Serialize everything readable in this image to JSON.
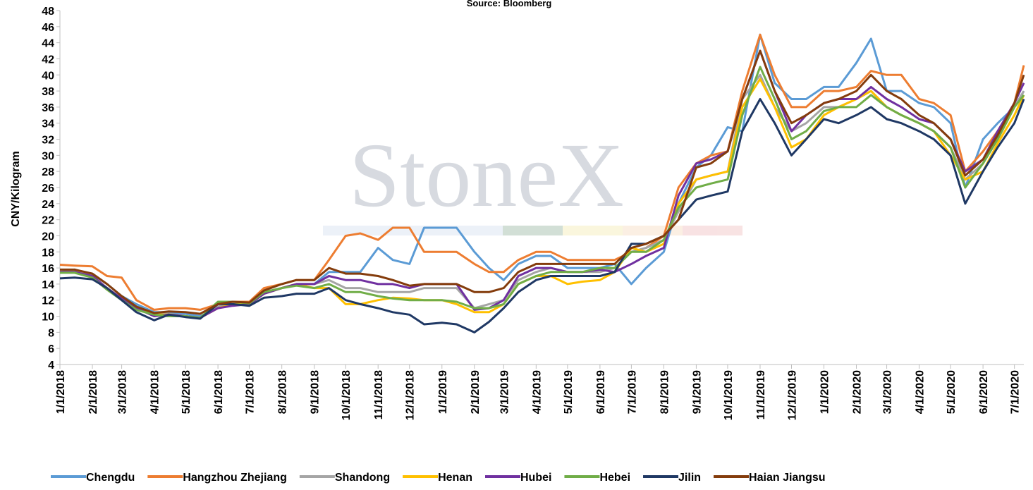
{
  "chart_data": {
    "type": "line",
    "title": "Source: Bloomberg",
    "watermark": "StoneX",
    "y_label": "CNY/Kilogram",
    "x": [
      "1/1/2018",
      "1/15/2018",
      "2/1/2018",
      "2/15/2018",
      "3/1/2018",
      "3/15/2018",
      "4/1/2018",
      "4/15/2018",
      "5/1/2018",
      "5/15/2018",
      "6/1/2018",
      "6/15/2018",
      "7/1/2018",
      "7/15/2018",
      "8/1/2018",
      "8/15/2018",
      "9/1/2018",
      "9/15/2018",
      "10/1/2018",
      "10/15/2018",
      "11/1/2018",
      "11/15/2018",
      "12/1/2018",
      "12/15/2018",
      "1/1/2019",
      "1/15/2019",
      "2/1/2019",
      "2/15/2019",
      "3/1/2019",
      "3/15/2019",
      "4/1/2019",
      "4/15/2019",
      "5/1/2019",
      "5/15/2019",
      "6/1/2019",
      "6/15/2019",
      "7/1/2019",
      "7/15/2019",
      "8/1/2019",
      "8/15/2019",
      "9/1/2019",
      "9/15/2019",
      "10/1/2019",
      "10/15/2019",
      "11/1/2019",
      "11/15/2019",
      "12/1/2019",
      "12/15/2019",
      "1/1/2020",
      "1/15/2020",
      "2/1/2020",
      "2/15/2020",
      "3/1/2020",
      "3/15/2020",
      "4/1/2020",
      "4/15/2020",
      "5/1/2020",
      "5/15/2020",
      "6/1/2020",
      "6/15/2020",
      "7/1/2020",
      "7/10/2020"
    ],
    "xlim": [
      "1/1/2018",
      "7/10/2020"
    ],
    "xticks": [
      "1/1/2018",
      "2/1/2018",
      "3/1/2018",
      "4/1/2018",
      "5/1/2018",
      "6/1/2018",
      "7/1/2018",
      "8/1/2018",
      "9/1/2018",
      "10/1/2018",
      "11/1/2018",
      "12/1/2018",
      "1/1/2019",
      "2/1/2019",
      "3/1/2019",
      "4/1/2019",
      "5/1/2019",
      "6/1/2019",
      "7/1/2019",
      "8/1/2019",
      "9/1/2019",
      "10/1/2019",
      "11/1/2019",
      "12/1/2019",
      "1/1/2020",
      "2/1/2020",
      "3/1/2020",
      "4/1/2020",
      "5/1/2020",
      "6/1/2020",
      "7/1/2020"
    ],
    "ylim": [
      4,
      48
    ],
    "yticks": [
      4,
      6,
      8,
      10,
      12,
      14,
      16,
      18,
      20,
      22,
      24,
      26,
      28,
      30,
      32,
      34,
      36,
      38,
      40,
      42,
      44,
      46,
      48
    ],
    "legend": "bottom",
    "series": [
      {
        "name": "Chengdu",
        "color": "#5b9bd5",
        "values": [
          15.5,
          15.8,
          15.2,
          14,
          12.5,
          11.5,
          10.5,
          10.5,
          10.3,
          10,
          11,
          11.5,
          11.5,
          13,
          13.5,
          14,
          14,
          15.5,
          15.5,
          15.5,
          18.5,
          17,
          16.5,
          21,
          21,
          21,
          18,
          16,
          14.5,
          16.5,
          17.5,
          17.5,
          16,
          16,
          16,
          16.5,
          14,
          16,
          18,
          24,
          28.5,
          30,
          33.5,
          33,
          45,
          39,
          37,
          37,
          38.5,
          38.5,
          41.5,
          44.5,
          38,
          38,
          36.5,
          36,
          34,
          26,
          32,
          34,
          36,
          38
        ]
      },
      {
        "name": "Hangzhou Zhejiang",
        "color": "#ed7d31",
        "values": [
          16.4,
          16.3,
          16.2,
          15,
          14.8,
          12,
          10.8,
          11,
          11,
          10.8,
          11.5,
          11.8,
          11.8,
          13.5,
          14,
          14.5,
          14.5,
          17,
          20,
          20.3,
          19.5,
          21,
          21,
          18,
          18,
          18,
          16.5,
          15.5,
          15.5,
          17,
          18,
          18,
          17,
          17,
          17,
          17,
          18,
          18.5,
          20,
          26,
          29,
          30,
          30.5,
          38,
          45,
          40,
          36,
          36,
          38,
          38,
          38.5,
          40.5,
          40,
          40,
          37,
          36.5,
          35,
          28,
          30.5,
          33,
          36.5,
          41.2
        ]
      },
      {
        "name": "Shandong",
        "color": "#a5a5a5",
        "values": [
          15.5,
          15.6,
          15,
          13.5,
          12.2,
          11,
          10.3,
          10.3,
          10,
          9.8,
          11.2,
          11.5,
          11.5,
          12.8,
          13.5,
          14,
          14,
          14.5,
          13.5,
          13.5,
          13,
          13,
          13,
          13.5,
          13.5,
          13.5,
          11,
          11.5,
          12,
          14.5,
          15.5,
          16,
          15.5,
          15.5,
          15.5,
          16,
          18,
          18.5,
          19.5,
          23,
          27,
          27.5,
          28,
          37,
          40,
          36,
          33,
          34,
          36,
          36,
          37,
          38,
          36,
          35,
          34,
          33,
          31,
          27,
          29,
          32,
          36,
          38
        ]
      },
      {
        "name": "Henan",
        "color": "#ffc000",
        "values": [
          15.5,
          15.5,
          15,
          13.5,
          12.2,
          11,
          10.2,
          10.2,
          10,
          9.8,
          11,
          11.5,
          11.5,
          12.8,
          13.5,
          14,
          13.5,
          13.5,
          11.5,
          11.5,
          12,
          12.3,
          12.2,
          12,
          12,
          11.5,
          10.5,
          10.5,
          11.5,
          14,
          15,
          15,
          14,
          14.3,
          14.5,
          15.5,
          18.5,
          18,
          19,
          24,
          27,
          27.5,
          28,
          36,
          39.5,
          36,
          31,
          32,
          35,
          36,
          37,
          38,
          36,
          35,
          34,
          33,
          30,
          27,
          28,
          31.5,
          35,
          37.5
        ]
      },
      {
        "name": "Hubei",
        "color": "#7030a0",
        "values": [
          15.5,
          15.5,
          15,
          13.5,
          12.2,
          11,
          10,
          10.2,
          10,
          9.8,
          11,
          11.3,
          11.5,
          12.8,
          13.5,
          14,
          14,
          15,
          14.5,
          14.5,
          14,
          14,
          13.5,
          14,
          14,
          14,
          10.8,
          11,
          12,
          15,
          16,
          16,
          15.5,
          15.5,
          15.8,
          15.5,
          16.5,
          17.5,
          18.5,
          25,
          29,
          29.5,
          30.5,
          37,
          43,
          38,
          33,
          35,
          36.5,
          37,
          37,
          38.5,
          37,
          36,
          34.5,
          34,
          32,
          28,
          29.5,
          33,
          36.5,
          39
        ]
      },
      {
        "name": "Hebei",
        "color": "#70ad47",
        "values": [
          15.4,
          15.4,
          14.8,
          13.3,
          12,
          10.8,
          10.2,
          10,
          10,
          9.8,
          11.8,
          11.8,
          11.6,
          13,
          13.5,
          13.8,
          13.5,
          14,
          13,
          13,
          12.5,
          12.2,
          12,
          12,
          12,
          11.8,
          11,
          11,
          11.5,
          14,
          15,
          15.5,
          15.5,
          15.5,
          16,
          16,
          18,
          18,
          19.5,
          23.5,
          26,
          26.5,
          27,
          35,
          41,
          37,
          32,
          33,
          35.5,
          36,
          36,
          37.5,
          36,
          35,
          34,
          33,
          31,
          26,
          29,
          32,
          36,
          37.5
        ]
      },
      {
        "name": "Jilin",
        "color": "#1f3864",
        "values": [
          14.7,
          14.8,
          14.6,
          13.5,
          12,
          10.5,
          9.5,
          10.2,
          9.9,
          9.7,
          11.5,
          11.5,
          11.3,
          12.3,
          12.5,
          12.8,
          12.8,
          13.5,
          12,
          11.5,
          11,
          10.5,
          10.2,
          9,
          9.2,
          9,
          8,
          9.3,
          11,
          13,
          14.5,
          15,
          15,
          15,
          15,
          15.5,
          19,
          19,
          20,
          22,
          24.5,
          25,
          25.5,
          33,
          37,
          34,
          30,
          32,
          34.5,
          34,
          35,
          36,
          34.5,
          34,
          33,
          32,
          30,
          24,
          28,
          31,
          34,
          37
        ]
      },
      {
        "name": "Haian Jiangsu",
        "color": "#843c0c",
        "values": [
          15.8,
          15.8,
          15.3,
          14,
          12.5,
          11.2,
          10.4,
          10.6,
          10.5,
          10.3,
          11.5,
          11.8,
          11.7,
          13.2,
          14,
          14.5,
          14.5,
          16,
          15.3,
          15.3,
          15,
          14.5,
          13.8,
          14,
          14,
          14,
          13,
          13,
          13.5,
          15.5,
          16.5,
          16.5,
          16.5,
          16.5,
          16.5,
          16.5,
          18.5,
          19,
          20,
          22,
          28.5,
          29,
          30.5,
          37,
          43,
          38,
          34,
          35,
          36.5,
          37,
          38,
          40,
          38,
          37,
          35,
          34,
          32,
          27.5,
          29.5,
          32.5,
          36.5,
          40
        ]
      }
    ]
  }
}
